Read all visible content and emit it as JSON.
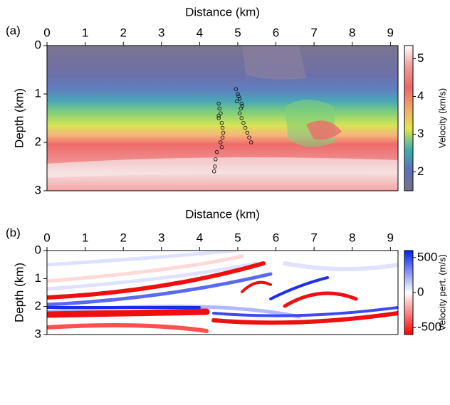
{
  "chart_data": [
    {
      "type": "heatmap",
      "panel_label": "(a)",
      "xlabel": "Distance (km)",
      "ylabel": "Depth (km)",
      "xlim": [
        0,
        9.2
      ],
      "xticks": [
        0,
        1,
        2,
        3,
        4,
        5,
        6,
        7,
        8,
        9
      ],
      "ylim": [
        0,
        3
      ],
      "yticks": [
        0,
        1,
        2,
        3
      ],
      "colorbar": {
        "label": "Velocity (km/s)",
        "lim": [
          1.5,
          5.35
        ],
        "ticks": [
          2,
          3,
          4,
          5
        ],
        "colors": [
          "#7a7388",
          "#5b6fb8",
          "#3fb0a8",
          "#e2e64c",
          "#f3a66a",
          "#ee6868",
          "#f39a9a",
          "#ffffff"
        ]
      },
      "scatter": {
        "color": "#000000",
        "x": [
          4.5,
          4.52,
          4.55,
          4.5,
          4.58,
          4.6,
          4.62,
          4.6,
          4.55,
          4.58,
          4.5,
          4.45,
          4.42,
          4.4,
          4.38,
          4.95,
          5.0,
          5.05,
          5.1,
          5.08,
          5.02,
          5.05,
          5.1,
          5.15,
          5.2,
          5.25,
          5.3,
          5.35,
          4.98,
          5.12
        ],
        "y": [
          1.2,
          1.3,
          1.4,
          1.5,
          1.6,
          1.7,
          1.8,
          1.9,
          2.0,
          2.1,
          1.45,
          2.2,
          2.35,
          2.5,
          2.6,
          0.9,
          1.0,
          1.1,
          1.2,
          1.3,
          1.05,
          1.4,
          1.5,
          1.6,
          1.7,
          1.8,
          1.9,
          2.0,
          1.15,
          1.25
        ]
      }
    },
    {
      "type": "heatmap",
      "panel_label": "(b)",
      "xlabel": "Distance (km)",
      "ylabel": "Depth (km)",
      "xlim": [
        0,
        9.2
      ],
      "xticks": [
        0,
        1,
        2,
        3,
        4,
        5,
        6,
        7,
        8,
        9
      ],
      "ylim": [
        0,
        3
      ],
      "yticks": [
        0,
        1,
        2,
        3
      ],
      "colorbar": {
        "label": "Velocity pert. (m/s)",
        "lim": [
          -600,
          600
        ],
        "ticks": [
          -500,
          0,
          500
        ],
        "colors": [
          "#ff0000",
          "#ffffff",
          "#0022ee"
        ]
      }
    }
  ]
}
